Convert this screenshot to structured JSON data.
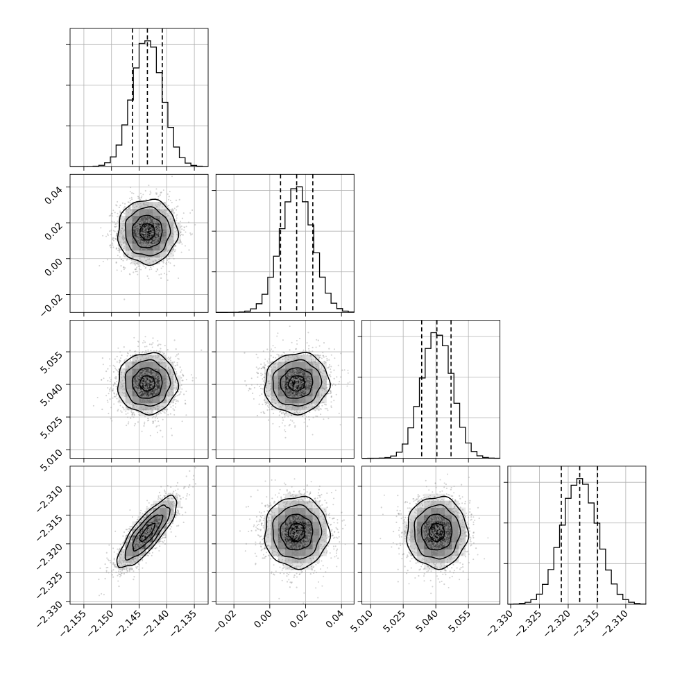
{
  "chart_data": {
    "type": "corner",
    "parameters": [
      {
        "name": "",
        "range": [
          -2.1575,
          -2.1325
        ],
        "ticks": [
          -2.155,
          -2.15,
          -2.145,
          -2.14,
          -2.135
        ],
        "tick_labels": [
          "−2.155",
          "−2.150",
          "−2.145",
          "−2.140",
          "−2.135"
        ],
        "median": -2.1435,
        "q16": -2.1462,
        "q84": -2.1408,
        "mean": -2.1435,
        "sd": 0.0027
      },
      {
        "name": "",
        "range": [
          -0.03,
          0.047
        ],
        "ticks": [
          -0.02,
          0.0,
          0.02,
          0.04
        ],
        "tick_labels": [
          "−0.02",
          "0.00",
          "0.02",
          "0.04"
        ],
        "median": 0.015,
        "q16": 0.006,
        "q84": 0.024,
        "mean": 0.015,
        "sd": 0.009
      },
      {
        "name": "",
        "range": [
          5.006,
          5.0695
        ],
        "ticks": [
          5.01,
          5.025,
          5.04,
          5.055
        ],
        "tick_labels": [
          "5.010",
          "5.025",
          "5.040",
          "5.055"
        ],
        "median": 5.0405,
        "q16": 5.0335,
        "q84": 5.047,
        "mean": 5.0405,
        "sd": 0.007
      },
      {
        "name": "",
        "range": [
          -2.3305,
          -2.3065
        ],
        "ticks": [
          -2.33,
          -2.325,
          -2.32,
          -2.315,
          -2.31
        ],
        "tick_labels": [
          "−2.330",
          "−2.325",
          "−2.320",
          "−2.315",
          "−2.310"
        ],
        "median": -2.318,
        "q16": -2.3212,
        "q84": -2.3149,
        "mean": -2.318,
        "sd": 0.0031
      }
    ],
    "correlations": [
      [
        1.0,
        0.0,
        0.0,
        0.82
      ],
      [
        0.0,
        1.0,
        0.05,
        0.0
      ],
      [
        0.0,
        0.05,
        1.0,
        0.0
      ],
      [
        0.82,
        0.0,
        0.0,
        1.0
      ]
    ],
    "contour_levels_sigma": [
      0.5,
      1.0,
      1.5,
      2.0
    ],
    "diagonal": "1d histogram with dashed 16/50/84 percentile lines",
    "off_diagonal": "2d density with scatter points and contours",
    "grid": true,
    "colors": {
      "line": "#000000",
      "grid": "#b0b0b0",
      "points": "#999999",
      "density_max": "#000000"
    }
  }
}
